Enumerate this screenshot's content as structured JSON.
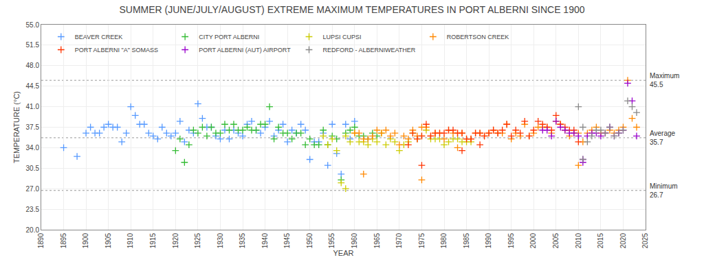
{
  "chart_data": {
    "type": "scatter",
    "title": "SUMMER (JUNE/JULY/AUGUST) EXTREME MAXIMUM TEMPERATURES IN PORT ALBERNI SINCE 1900",
    "xlabel": "YEAR",
    "ylabel": "TEMPERATURE (°C)",
    "xlim": [
      1890,
      2025
    ],
    "ylim": [
      20.0,
      55.0
    ],
    "xticks": [
      1890,
      1895,
      1900,
      1905,
      1910,
      1915,
      1920,
      1925,
      1930,
      1935,
      1940,
      1945,
      1950,
      1955,
      1960,
      1965,
      1970,
      1975,
      1980,
      1985,
      1990,
      1995,
      2000,
      2005,
      2010,
      2015,
      2020,
      2025
    ],
    "yticks": [
      {
        "value": 20.0,
        "label": "20.0"
      },
      23.5,
      {
        "value": 27.0,
        "label": "27.0"
      },
      30.5,
      {
        "value": 34.0,
        "label": "34.0"
      },
      37.5,
      {
        "value": 41.0,
        "label": "41.0"
      },
      44.5,
      {
        "value": 48.0,
        "label": "48.0"
      },
      51.5,
      {
        "value": 55.0,
        "label": "55.0"
      }
    ],
    "grid": true,
    "legend": "upper left",
    "marker": "plus",
    "reference_lines": [
      {
        "value": 45.5,
        "label": "Maximum\n45.5"
      },
      {
        "value": 35.7,
        "label": "Average\n35.7"
      },
      {
        "value": 26.7,
        "label": "Minimum\n26.7"
      }
    ],
    "series": [
      {
        "name": "BEAVER CREEK",
        "color": "#5599ff",
        "x": [
          1895,
          1898,
          1900,
          1901,
          1902,
          1903,
          1904,
          1905,
          1906,
          1907,
          1908,
          1909,
          1910,
          1911,
          1912,
          1913,
          1914,
          1915,
          1916,
          1917,
          1918,
          1919,
          1920,
          1921,
          1922,
          1923,
          1924,
          1925,
          1926,
          1927,
          1928,
          1929,
          1930,
          1931,
          1932,
          1933,
          1934,
          1935,
          1936,
          1937,
          1938,
          1939,
          1940,
          1941,
          1942,
          1943,
          1944,
          1945,
          1946,
          1947,
          1948,
          1949,
          1950,
          1951,
          1952,
          1953,
          1954,
          1955,
          1956,
          1957,
          1958,
          1959,
          1960
        ],
        "values": [
          34.0,
          32.5,
          36.5,
          37.5,
          36.5,
          36.5,
          37.5,
          38.0,
          37.5,
          37.5,
          35.0,
          36.5,
          41.0,
          39.5,
          38.0,
          38.0,
          36.5,
          36.0,
          35.5,
          37.5,
          36.5,
          36.0,
          36.5,
          38.5,
          35.0,
          37.0,
          36.5,
          41.5,
          39.0,
          37.5,
          37.5,
          36.0,
          35.5,
          37.0,
          35.5,
          37.0,
          36.5,
          36.0,
          38.0,
          38.5,
          37.0,
          36.5,
          37.5,
          38.5,
          36.0,
          37.0,
          38.0,
          35.0,
          37.0,
          36.5,
          38.0,
          37.0,
          32.0,
          35.0,
          35.0,
          36.5,
          31.0,
          38.0,
          33.0,
          29.5,
          38.0,
          35.5,
          38.5
        ]
      },
      {
        "name": "CITY PORT ALBERNI",
        "color": "#33bb33",
        "x": [
          1920,
          1921,
          1922,
          1923,
          1924,
          1925,
          1926,
          1927,
          1928,
          1929,
          1930,
          1931,
          1932,
          1933,
          1934,
          1935,
          1936,
          1937,
          1938,
          1939,
          1940,
          1941,
          1942,
          1943,
          1944,
          1945,
          1946,
          1947,
          1948,
          1949,
          1950,
          1951,
          1952,
          1953,
          1954,
          1955,
          1956,
          1957,
          1958,
          1959,
          1960,
          1961,
          1962,
          1963,
          1964,
          1965
        ],
        "values": [
          33.5,
          35.5,
          31.5,
          34.5,
          37.0,
          36.5,
          37.5,
          36.0,
          37.5,
          36.5,
          36.5,
          38.0,
          37.0,
          38.0,
          37.0,
          37.0,
          37.5,
          37.0,
          37.0,
          38.0,
          38.0,
          41.0,
          35.5,
          37.5,
          36.5,
          36.5,
          35.5,
          36.5,
          36.5,
          34.5,
          35.5,
          34.5,
          34.5,
          37.0,
          34.5,
          36.0,
          35.5,
          28.5,
          36.5,
          37.0,
          37.5,
          36.0,
          36.0,
          35.5,
          36.5,
          36.0
        ]
      },
      {
        "name": "LUPSI CUPSI",
        "color": "#cccc00",
        "x": [
          1953,
          1954,
          1955,
          1956,
          1957,
          1958,
          1958,
          1959,
          1960,
          1961,
          1962,
          1963,
          1964,
          1965,
          1966,
          1967,
          1968,
          1969,
          1970,
          1971,
          1972,
          1973,
          1974,
          1975,
          1976,
          1977,
          1978,
          1979,
          1980,
          1981,
          1982,
          1983,
          1984,
          1985,
          1986
        ],
        "values": [
          36.0,
          34.5,
          35.5,
          33.5,
          28.0,
          36.0,
          27.0,
          35.0,
          36.5,
          35.0,
          35.0,
          34.5,
          35.5,
          35.0,
          36.5,
          34.5,
          35.5,
          35.0,
          33.5,
          34.5,
          35.0,
          36.5,
          35.5,
          36.0,
          37.0,
          35.5,
          35.5,
          35.5,
          34.5,
          35.0,
          35.5,
          35.5,
          35.0,
          35.0,
          35.0
        ]
      },
      {
        "name": "ROBERTSON CREEK",
        "color": "#ff8800",
        "x": [
          1960,
          1961,
          1962,
          1962,
          1963,
          1964,
          1965,
          1966,
          1967,
          1968,
          1969,
          1970,
          1971,
          1972,
          1973,
          1974,
          1975,
          1975,
          1976,
          1977,
          1978,
          1979,
          1980,
          1981,
          1982,
          1983,
          1983,
          1984,
          1985,
          1986,
          1987,
          1988,
          1989,
          1990,
          1991,
          1992,
          1993,
          1994,
          1995,
          1996,
          1997,
          1998,
          1999,
          2000,
          2001,
          2002,
          2003,
          2004,
          2005,
          2006,
          2007,
          2008,
          2009,
          2010,
          2010,
          2011,
          2012,
          2013,
          2014,
          2015,
          2016,
          2017,
          2018,
          2019,
          2020,
          2021,
          2022,
          2023
        ],
        "values": [
          36.5,
          36.5,
          35.5,
          29.5,
          35.5,
          36.0,
          37.0,
          36.5,
          37.0,
          36.0,
          36.5,
          34.5,
          36.0,
          35.5,
          37.0,
          36.0,
          37.5,
          28.5,
          37.5,
          36.0,
          36.5,
          36.5,
          35.5,
          37.0,
          36.5,
          36.5,
          34.0,
          36.5,
          35.5,
          35.5,
          36.5,
          36.5,
          36.0,
          36.5,
          37.0,
          36.5,
          36.5,
          38.0,
          35.5,
          36.5,
          36.0,
          38.0,
          36.0,
          36.5,
          37.5,
          37.5,
          37.5,
          36.5,
          38.5,
          38.0,
          37.0,
          36.0,
          36.5,
          36.5,
          31.0,
          35.0,
          36.5,
          37.0,
          37.5,
          36.5,
          36.5,
          37.0,
          36.5,
          37.0,
          37.5,
          45.5,
          39.0,
          37.5
        ]
      },
      {
        "name": "PORT ALBERNI \"A\" SOMASS",
        "color": "#ff3300",
        "x": [
          1972,
          1973,
          1974,
          1975,
          1975,
          1976,
          1977,
          1978,
          1979,
          1980,
          1981,
          1982,
          1983,
          1984,
          1984,
          1985,
          1986,
          1987,
          1988,
          1988,
          1989,
          1990,
          1991,
          1992,
          1993,
          1994,
          1995,
          1996,
          1997,
          1998,
          1999,
          2000,
          2001,
          2002,
          2003,
          2004,
          2005,
          2006,
          2007,
          2008,
          2009,
          2010
        ],
        "values": [
          34.5,
          36.5,
          35.5,
          36.0,
          31.0,
          38.0,
          36.0,
          36.5,
          36.5,
          36.5,
          37.0,
          37.0,
          36.5,
          36.5,
          33.5,
          35.5,
          35.5,
          36.5,
          36.5,
          34.5,
          36.0,
          36.5,
          37.0,
          36.5,
          37.0,
          38.0,
          36.0,
          37.0,
          36.5,
          38.5,
          36.0,
          37.0,
          38.5,
          38.0,
          37.5,
          37.0,
          39.5,
          38.0,
          37.5,
          37.0,
          37.0,
          35.0
        ]
      },
      {
        "name": "PORT ALBERNI (AUT) AIRPORT",
        "color": "#9900cc",
        "x": [
          2002,
          2003,
          2004,
          2005,
          2006,
          2007,
          2008,
          2009,
          2010,
          2011,
          2011,
          2012,
          2013,
          2014,
          2015,
          2016,
          2017,
          2018,
          2019,
          2020,
          2021,
          2022,
          2023
        ],
        "values": [
          37.0,
          37.0,
          36.0,
          38.5,
          37.5,
          37.0,
          36.5,
          36.5,
          36.0,
          32.0,
          31.5,
          36.0,
          36.5,
          36.5,
          36.0,
          36.5,
          37.5,
          36.0,
          36.5,
          37.0,
          45.0,
          42.0,
          36.0
        ]
      },
      {
        "name": "REDFORD - ALBERNIWEATHER",
        "color": "#888888",
        "x": [
          2010,
          2011,
          2011,
          2012,
          2013,
          2014,
          2015,
          2016,
          2017,
          2018,
          2019,
          2020,
          2021,
          2022,
          2023
        ],
        "values": [
          41.0,
          37.5,
          32.0,
          35.0,
          36.0,
          37.0,
          37.0,
          36.5,
          37.5,
          36.0,
          36.5,
          37.0,
          42.0,
          41.0,
          40.0
        ]
      }
    ]
  }
}
